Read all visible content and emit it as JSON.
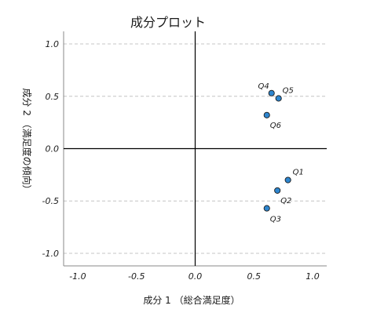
{
  "chart_data": {
    "type": "scatter",
    "title": "成分プロット",
    "xlabel": "成分 1 （総合満足度）",
    "ylabel": "成分 2 （満足度の傾向）",
    "xlim": [
      -1.12,
      1.12
    ],
    "ylim": [
      -1.12,
      1.12
    ],
    "xticks": [
      -1.0,
      -0.5,
      0.0,
      0.5,
      1.0
    ],
    "yticks": [
      -1.0,
      -0.5,
      0.0,
      0.5,
      1.0
    ],
    "xtick_labels": [
      "-1.0",
      "-0.5",
      "0.0",
      "0.5",
      "1.0"
    ],
    "ytick_labels": [
      "-1.0",
      "-0.5",
      "0.0",
      "0.5",
      "1.0"
    ],
    "grid": "horizontal dashed",
    "reference_lines": {
      "x0": true,
      "y0": true
    },
    "points": [
      {
        "label": "Q1",
        "x": 0.79,
        "y": -0.3
      },
      {
        "label": "Q2",
        "x": 0.7,
        "y": -0.4
      },
      {
        "label": "Q3",
        "x": 0.61,
        "y": -0.57
      },
      {
        "label": "Q4",
        "x": 0.65,
        "y": 0.53
      },
      {
        "label": "Q5",
        "x": 0.71,
        "y": 0.48
      },
      {
        "label": "Q6",
        "x": 0.61,
        "y": 0.32
      }
    ],
    "colors": {
      "point_fill": "#2e86cf",
      "point_stroke": "#1a1a1a",
      "grid": "#c4c4c4",
      "axis": "#000000",
      "frame": "#888888"
    }
  }
}
